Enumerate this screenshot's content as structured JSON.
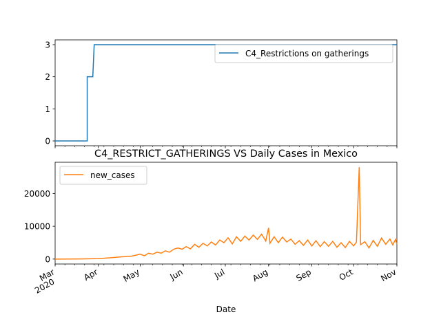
{
  "chart_data": [
    {
      "type": "line",
      "title": "",
      "xlabel": "",
      "ylabel": "",
      "ylim": [
        -0.15,
        3.15
      ],
      "yticks": [
        0,
        1,
        2,
        3
      ],
      "legend": {
        "placement": "top-right"
      },
      "series": [
        {
          "name": "C4_Restrictions on gatherings",
          "color": "#1f77b4",
          "points": [
            [
              "2020-03-01",
              0
            ],
            [
              "2020-03-24",
              0
            ],
            [
              "2020-03-24",
              2
            ],
            [
              "2020-03-28",
              2
            ],
            [
              "2020-03-29",
              3
            ],
            [
              "2020-11-01",
              3
            ]
          ]
        }
      ]
    },
    {
      "type": "line",
      "title": "C4_RESTRICT_GATHERINGS VS Daily Cases in Mexico",
      "xlabel": "Date",
      "ylabel": "",
      "ylim": [
        -1500,
        29500
      ],
      "yticks": [
        0,
        10000,
        20000
      ],
      "xticks": [
        {
          "date": "2020-03-01",
          "label": "Mar",
          "sublabel": "2020"
        },
        {
          "date": "2020-04-01",
          "label": "Apr",
          "sublabel": ""
        },
        {
          "date": "2020-05-01",
          "label": "May",
          "sublabel": ""
        },
        {
          "date": "2020-06-01",
          "label": "Jun",
          "sublabel": ""
        },
        {
          "date": "2020-07-01",
          "label": "Jul",
          "sublabel": ""
        },
        {
          "date": "2020-08-01",
          "label": "Aug",
          "sublabel": ""
        },
        {
          "date": "2020-09-01",
          "label": "Sep",
          "sublabel": ""
        },
        {
          "date": "2020-10-01",
          "label": "Oct",
          "sublabel": ""
        },
        {
          "date": "2020-11-01",
          "label": "Nov",
          "sublabel": ""
        }
      ],
      "legend": {
        "placement": "top-left"
      },
      "series": [
        {
          "name": "new_cases",
          "color": "#ff7f0e",
          "points": [
            [
              "2020-03-01",
              0
            ],
            [
              "2020-03-10",
              5
            ],
            [
              "2020-03-20",
              40
            ],
            [
              "2020-03-26",
              100
            ],
            [
              "2020-04-01",
              150
            ],
            [
              "2020-04-05",
              250
            ],
            [
              "2020-04-10",
              400
            ],
            [
              "2020-04-15",
              600
            ],
            [
              "2020-04-20",
              750
            ],
            [
              "2020-04-25",
              900
            ],
            [
              "2020-04-28",
              1200
            ],
            [
              "2020-05-01",
              1500
            ],
            [
              "2020-05-04",
              1000
            ],
            [
              "2020-05-07",
              1800
            ],
            [
              "2020-05-10",
              1500
            ],
            [
              "2020-05-13",
              2100
            ],
            [
              "2020-05-16",
              1800
            ],
            [
              "2020-05-19",
              2500
            ],
            [
              "2020-05-22",
              2100
            ],
            [
              "2020-05-25",
              3000
            ],
            [
              "2020-05-28",
              3400
            ],
            [
              "2020-05-31",
              3000
            ],
            [
              "2020-06-03",
              3800
            ],
            [
              "2020-06-06",
              3100
            ],
            [
              "2020-06-09",
              4500
            ],
            [
              "2020-06-12",
              3600
            ],
            [
              "2020-06-15",
              4800
            ],
            [
              "2020-06-18",
              4000
            ],
            [
              "2020-06-21",
              5200
            ],
            [
              "2020-06-24",
              4300
            ],
            [
              "2020-06-27",
              5800
            ],
            [
              "2020-06-30",
              5000
            ],
            [
              "2020-07-03",
              6500
            ],
            [
              "2020-07-06",
              4600
            ],
            [
              "2020-07-09",
              6800
            ],
            [
              "2020-07-12",
              5400
            ],
            [
              "2020-07-15",
              7000
            ],
            [
              "2020-07-18",
              5800
            ],
            [
              "2020-07-21",
              7300
            ],
            [
              "2020-07-24",
              6000
            ],
            [
              "2020-07-27",
              7600
            ],
            [
              "2020-07-30",
              5500
            ],
            [
              "2020-08-01",
              9500
            ],
            [
              "2020-08-02",
              4800
            ],
            [
              "2020-08-05",
              6800
            ],
            [
              "2020-08-08",
              5000
            ],
            [
              "2020-08-11",
              6700
            ],
            [
              "2020-08-14",
              5200
            ],
            [
              "2020-08-17",
              6100
            ],
            [
              "2020-08-20",
              4500
            ],
            [
              "2020-08-23",
              5600
            ],
            [
              "2020-08-26",
              4200
            ],
            [
              "2020-08-29",
              5800
            ],
            [
              "2020-09-01",
              4000
            ],
            [
              "2020-09-04",
              5600
            ],
            [
              "2020-09-07",
              3800
            ],
            [
              "2020-09-10",
              5300
            ],
            [
              "2020-09-13",
              3900
            ],
            [
              "2020-09-16",
              5400
            ],
            [
              "2020-09-19",
              3600
            ],
            [
              "2020-09-22",
              5000
            ],
            [
              "2020-09-25",
              3500
            ],
            [
              "2020-09-28",
              5400
            ],
            [
              "2020-10-01",
              4000
            ],
            [
              "2020-10-03",
              5200
            ],
            [
              "2020-10-05",
              28000
            ],
            [
              "2020-10-06",
              4400
            ],
            [
              "2020-10-09",
              5300
            ],
            [
              "2020-10-12",
              3400
            ],
            [
              "2020-10-15",
              5700
            ],
            [
              "2020-10-18",
              3900
            ],
            [
              "2020-10-21",
              6400
            ],
            [
              "2020-10-24",
              4500
            ],
            [
              "2020-10-27",
              6100
            ],
            [
              "2020-10-29",
              4300
            ],
            [
              "2020-10-31",
              6000
            ],
            [
              "2020-11-01",
              4500
            ]
          ]
        }
      ]
    }
  ],
  "x_range": [
    "2020-03-01",
    "2020-11-01"
  ]
}
